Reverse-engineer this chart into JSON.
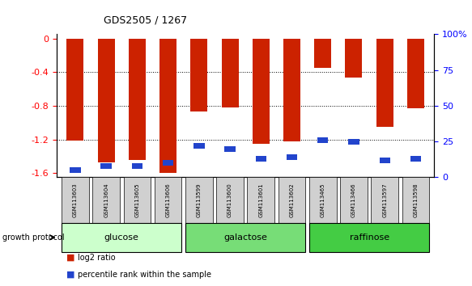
{
  "title": "GDS2505 / 1267",
  "samples": [
    "GSM113603",
    "GSM113604",
    "GSM113605",
    "GSM113606",
    "GSM113599",
    "GSM113600",
    "GSM113601",
    "GSM113602",
    "GSM113465",
    "GSM113466",
    "GSM113597",
    "GSM113598"
  ],
  "log2_ratio": [
    -1.21,
    -1.47,
    -1.44,
    -1.6,
    -0.87,
    -0.82,
    -1.25,
    -1.22,
    -0.35,
    -0.46,
    -1.05,
    -0.83
  ],
  "percentile_rank": [
    5,
    8,
    8,
    10,
    22,
    20,
    13,
    14,
    26,
    25,
    12,
    13
  ],
  "groups": [
    {
      "label": "glucose",
      "start": 0,
      "end": 3,
      "color": "#ccffcc"
    },
    {
      "label": "galactose",
      "start": 4,
      "end": 7,
      "color": "#77dd77"
    },
    {
      "label": "raffinose",
      "start": 8,
      "end": 11,
      "color": "#44cc44"
    }
  ],
  "ylim_left": [
    -1.65,
    0.05
  ],
  "ylim_right": [
    0,
    100
  ],
  "yticks_left": [
    0.0,
    -0.4,
    -0.8,
    -1.2,
    -1.6
  ],
  "yticks_right": [
    0,
    25,
    50,
    75,
    100
  ],
  "bar_color_red": "#cc2200",
  "bar_color_blue": "#2244cc",
  "bar_width": 0.55,
  "blue_bar_width": 0.35,
  "legend_red": "log2 ratio",
  "legend_blue": "percentile rank within the sample",
  "group_label": "growth protocol",
  "background_color": "#ffffff"
}
